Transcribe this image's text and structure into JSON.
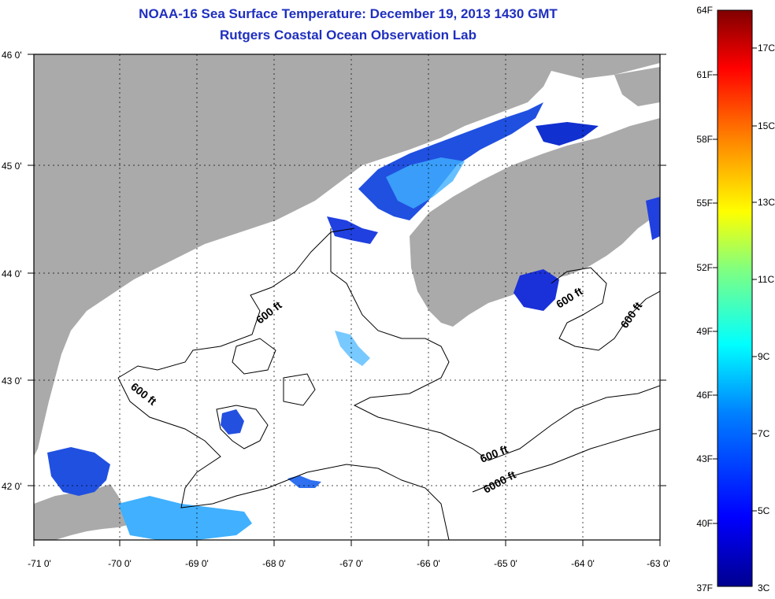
{
  "title_line1": "NOAA-16 Sea Surface Temperature:  December 19, 2013 1430 GMT",
  "title_line2": "Rutgers Coastal Ocean Observation Lab",
  "lon_labels": [
    "-71 0'",
    "-70 0'",
    "-69 0'",
    "-68 0'",
    "-67 0'",
    "-66 0'",
    "-65 0'",
    "-64 0'",
    "-63 0'"
  ],
  "lat_labels": [
    "46 0'",
    "45 0'",
    "44 0'",
    "43 0'",
    "42 0'"
  ],
  "contour_labels": [
    "600 ft",
    "600 ft",
    "600 ft",
    "600 ft",
    "600 ft",
    "6000 ft"
  ],
  "colorbar": {
    "f_labels": [
      "64F",
      "61F",
      "58F",
      "55F",
      "52F",
      "49F",
      "46F",
      "43F",
      "40F",
      "37F"
    ],
    "c_labels": [
      "17C",
      "15C",
      "13C",
      "11C",
      "9C",
      "7C",
      "5C",
      "3C"
    ]
  },
  "colors": {
    "land": "#aaaaaa",
    "ocean": "#ffffff",
    "title": "#1f2fbf"
  }
}
